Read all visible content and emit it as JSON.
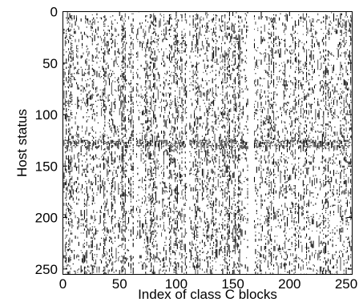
{
  "chart_data": {
    "type": "heatmap",
    "xlabel": "Index of class C blocks",
    "ylabel": "Host status",
    "xlim": [
      0,
      256
    ],
    "ylim": [
      256,
      0
    ],
    "x_ticks": [
      0,
      50,
      100,
      150,
      200,
      250
    ],
    "y_ticks": [
      0,
      50,
      100,
      150,
      200,
      250
    ],
    "grid": false,
    "colors": {
      "active": "#000000",
      "inactive": "#ffffff"
    },
    "dense_columns": [
      3,
      5,
      6,
      7,
      8,
      21,
      26,
      36,
      37,
      43,
      52,
      53,
      54,
      55,
      60,
      62,
      73,
      74,
      77,
      78,
      80,
      81,
      89,
      94,
      95,
      99,
      100,
      101,
      105,
      108,
      117,
      118,
      119,
      127,
      128,
      132,
      135,
      141,
      143,
      145,
      146,
      147,
      151,
      152,
      155,
      156,
      175,
      182,
      184,
      186,
      196,
      205,
      208,
      215,
      230,
      232,
      234,
      245,
      248,
      250,
      254
    ],
    "empty_columns": [
      15,
      63,
      64,
      110,
      111,
      164,
      165,
      166,
      167,
      168
    ],
    "dense_rows": [
      125,
      126,
      127,
      128,
      130,
      131
    ]
  }
}
